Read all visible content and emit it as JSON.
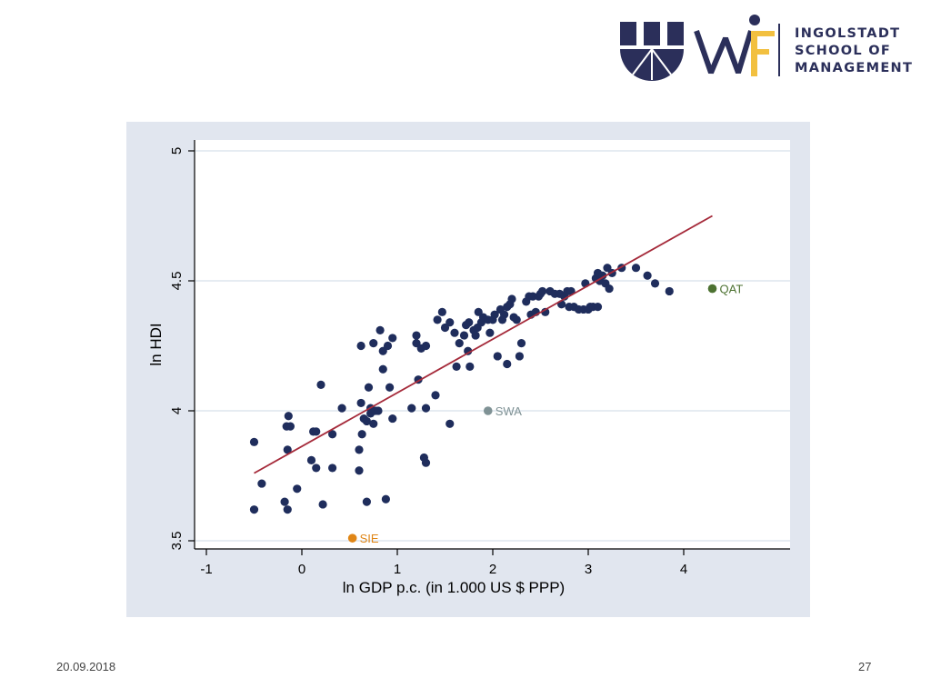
{
  "header": {
    "logo_mark": "WIF",
    "logo_lines": [
      "INGOLSTADT",
      "SCHOOL OF",
      "MANAGEMENT"
    ],
    "colors": {
      "navy": "#2b2f5a",
      "gold": "#f2c040"
    }
  },
  "footer": {
    "date": "20.09.2018",
    "page": "27"
  },
  "chart_data": {
    "type": "scatter",
    "xlabel": "ln GDP p.c. (in 1.000 US $ PPP)",
    "ylabel": "ln HDI",
    "xlim": [
      -1,
      5
    ],
    "ylim": [
      3.5,
      5
    ],
    "xticks": [
      -1,
      0,
      1,
      2,
      3,
      4
    ],
    "yticks": [
      3.5,
      4,
      4.5,
      5
    ],
    "grid": "horizontal",
    "colors": {
      "points": "#1f2d5c",
      "fit_line": "#a52a3a",
      "panel": "#e1e6ef",
      "plot_bg": "#ffffff",
      "grid": "#d8e1ea"
    },
    "fit_line": {
      "x": [
        -0.5,
        4.3
      ],
      "y": [
        3.76,
        4.75
      ]
    },
    "points": [
      [
        -0.5,
        3.88
      ],
      [
        -0.5,
        3.62
      ],
      [
        -0.42,
        3.72
      ],
      [
        -0.18,
        3.65
      ],
      [
        -0.16,
        3.94
      ],
      [
        -0.15,
        3.62
      ],
      [
        -0.14,
        3.98
      ],
      [
        -0.12,
        3.94
      ],
      [
        -0.15,
        3.85
      ],
      [
        -0.05,
        3.7
      ],
      [
        0.1,
        3.81
      ],
      [
        0.12,
        3.92
      ],
      [
        0.15,
        3.92
      ],
      [
        0.15,
        3.78
      ],
      [
        0.2,
        4.1
      ],
      [
        0.22,
        3.64
      ],
      [
        0.32,
        3.78
      ],
      [
        0.32,
        3.91
      ],
      [
        0.42,
        4.01
      ],
      [
        0.6,
        3.77
      ],
      [
        0.6,
        3.85
      ],
      [
        0.62,
        4.25
      ],
      [
        0.62,
        4.03
      ],
      [
        0.63,
        3.91
      ],
      [
        0.65,
        3.97
      ],
      [
        0.68,
        3.96
      ],
      [
        0.68,
        3.65
      ],
      [
        0.7,
        4.09
      ],
      [
        0.72,
        3.99
      ],
      [
        0.72,
        4.01
      ],
      [
        0.75,
        3.95
      ],
      [
        0.75,
        4.26
      ],
      [
        0.77,
        4.0
      ],
      [
        0.8,
        4.0
      ],
      [
        0.82,
        4.31
      ],
      [
        0.85,
        4.23
      ],
      [
        0.85,
        4.16
      ],
      [
        0.88,
        3.66
      ],
      [
        0.9,
        4.25
      ],
      [
        0.92,
        4.09
      ],
      [
        0.95,
        4.28
      ],
      [
        0.95,
        3.97
      ],
      [
        1.15,
        4.01
      ],
      [
        1.2,
        4.29
      ],
      [
        1.2,
        4.26
      ],
      [
        1.22,
        4.12
      ],
      [
        1.25,
        4.24
      ],
      [
        1.28,
        3.82
      ],
      [
        1.3,
        3.8
      ],
      [
        1.3,
        4.25
      ],
      [
        1.3,
        4.01
      ],
      [
        1.4,
        4.06
      ],
      [
        1.42,
        4.35
      ],
      [
        1.47,
        4.38
      ],
      [
        1.5,
        4.32
      ],
      [
        1.55,
        4.34
      ],
      [
        1.55,
        3.95
      ],
      [
        1.6,
        4.3
      ],
      [
        1.62,
        4.17
      ],
      [
        1.65,
        4.26
      ],
      [
        1.7,
        4.29
      ],
      [
        1.72,
        4.33
      ],
      [
        1.74,
        4.23
      ],
      [
        1.75,
        4.34
      ],
      [
        1.76,
        4.17
      ],
      [
        1.8,
        4.31
      ],
      [
        1.82,
        4.29
      ],
      [
        1.84,
        4.32
      ],
      [
        1.85,
        4.38
      ],
      [
        1.88,
        4.34
      ],
      [
        1.9,
        4.36
      ],
      [
        1.95,
        4.35
      ],
      [
        1.97,
        4.3
      ],
      [
        2.0,
        4.35
      ],
      [
        2.02,
        4.37
      ],
      [
        2.05,
        4.21
      ],
      [
        2.08,
        4.39
      ],
      [
        2.1,
        4.35
      ],
      [
        2.12,
        4.37
      ],
      [
        2.15,
        4.18
      ],
      [
        2.15,
        4.4
      ],
      [
        2.18,
        4.41
      ],
      [
        2.2,
        4.43
      ],
      [
        2.22,
        4.36
      ],
      [
        2.25,
        4.35
      ],
      [
        2.28,
        4.21
      ],
      [
        2.3,
        4.26
      ],
      [
        2.35,
        4.42
      ],
      [
        2.38,
        4.44
      ],
      [
        2.4,
        4.37
      ],
      [
        2.42,
        4.44
      ],
      [
        2.45,
        4.38
      ],
      [
        2.48,
        4.44
      ],
      [
        2.5,
        4.45
      ],
      [
        2.52,
        4.46
      ],
      [
        2.55,
        4.38
      ],
      [
        2.6,
        4.46
      ],
      [
        2.65,
        4.45
      ],
      [
        2.7,
        4.45
      ],
      [
        2.72,
        4.41
      ],
      [
        2.75,
        4.44
      ],
      [
        2.78,
        4.46
      ],
      [
        2.8,
        4.4
      ],
      [
        2.82,
        4.46
      ],
      [
        2.85,
        4.4
      ],
      [
        2.9,
        4.39
      ],
      [
        2.95,
        4.39
      ],
      [
        2.97,
        4.49
      ],
      [
        3.0,
        4.39
      ],
      [
        3.02,
        4.4
      ],
      [
        3.05,
        4.4
      ],
      [
        3.08,
        4.51
      ],
      [
        3.1,
        4.53
      ],
      [
        3.1,
        4.4
      ],
      [
        3.12,
        4.5
      ],
      [
        3.15,
        4.52
      ],
      [
        3.18,
        4.49
      ],
      [
        3.2,
        4.55
      ],
      [
        3.22,
        4.47
      ],
      [
        3.25,
        4.53
      ],
      [
        3.35,
        4.55
      ],
      [
        3.5,
        4.55
      ],
      [
        3.62,
        4.52
      ],
      [
        3.7,
        4.49
      ],
      [
        3.85,
        4.46
      ]
    ],
    "highlighted": [
      {
        "label": "QAT",
        "x": 4.3,
        "y": 4.47,
        "color": "#4d7232"
      },
      {
        "label": "SWA",
        "x": 1.95,
        "y": 4.0,
        "color": "#7f9295"
      },
      {
        "label": "SIE",
        "x": 0.53,
        "y": 3.51,
        "color": "#e08616"
      }
    ]
  }
}
